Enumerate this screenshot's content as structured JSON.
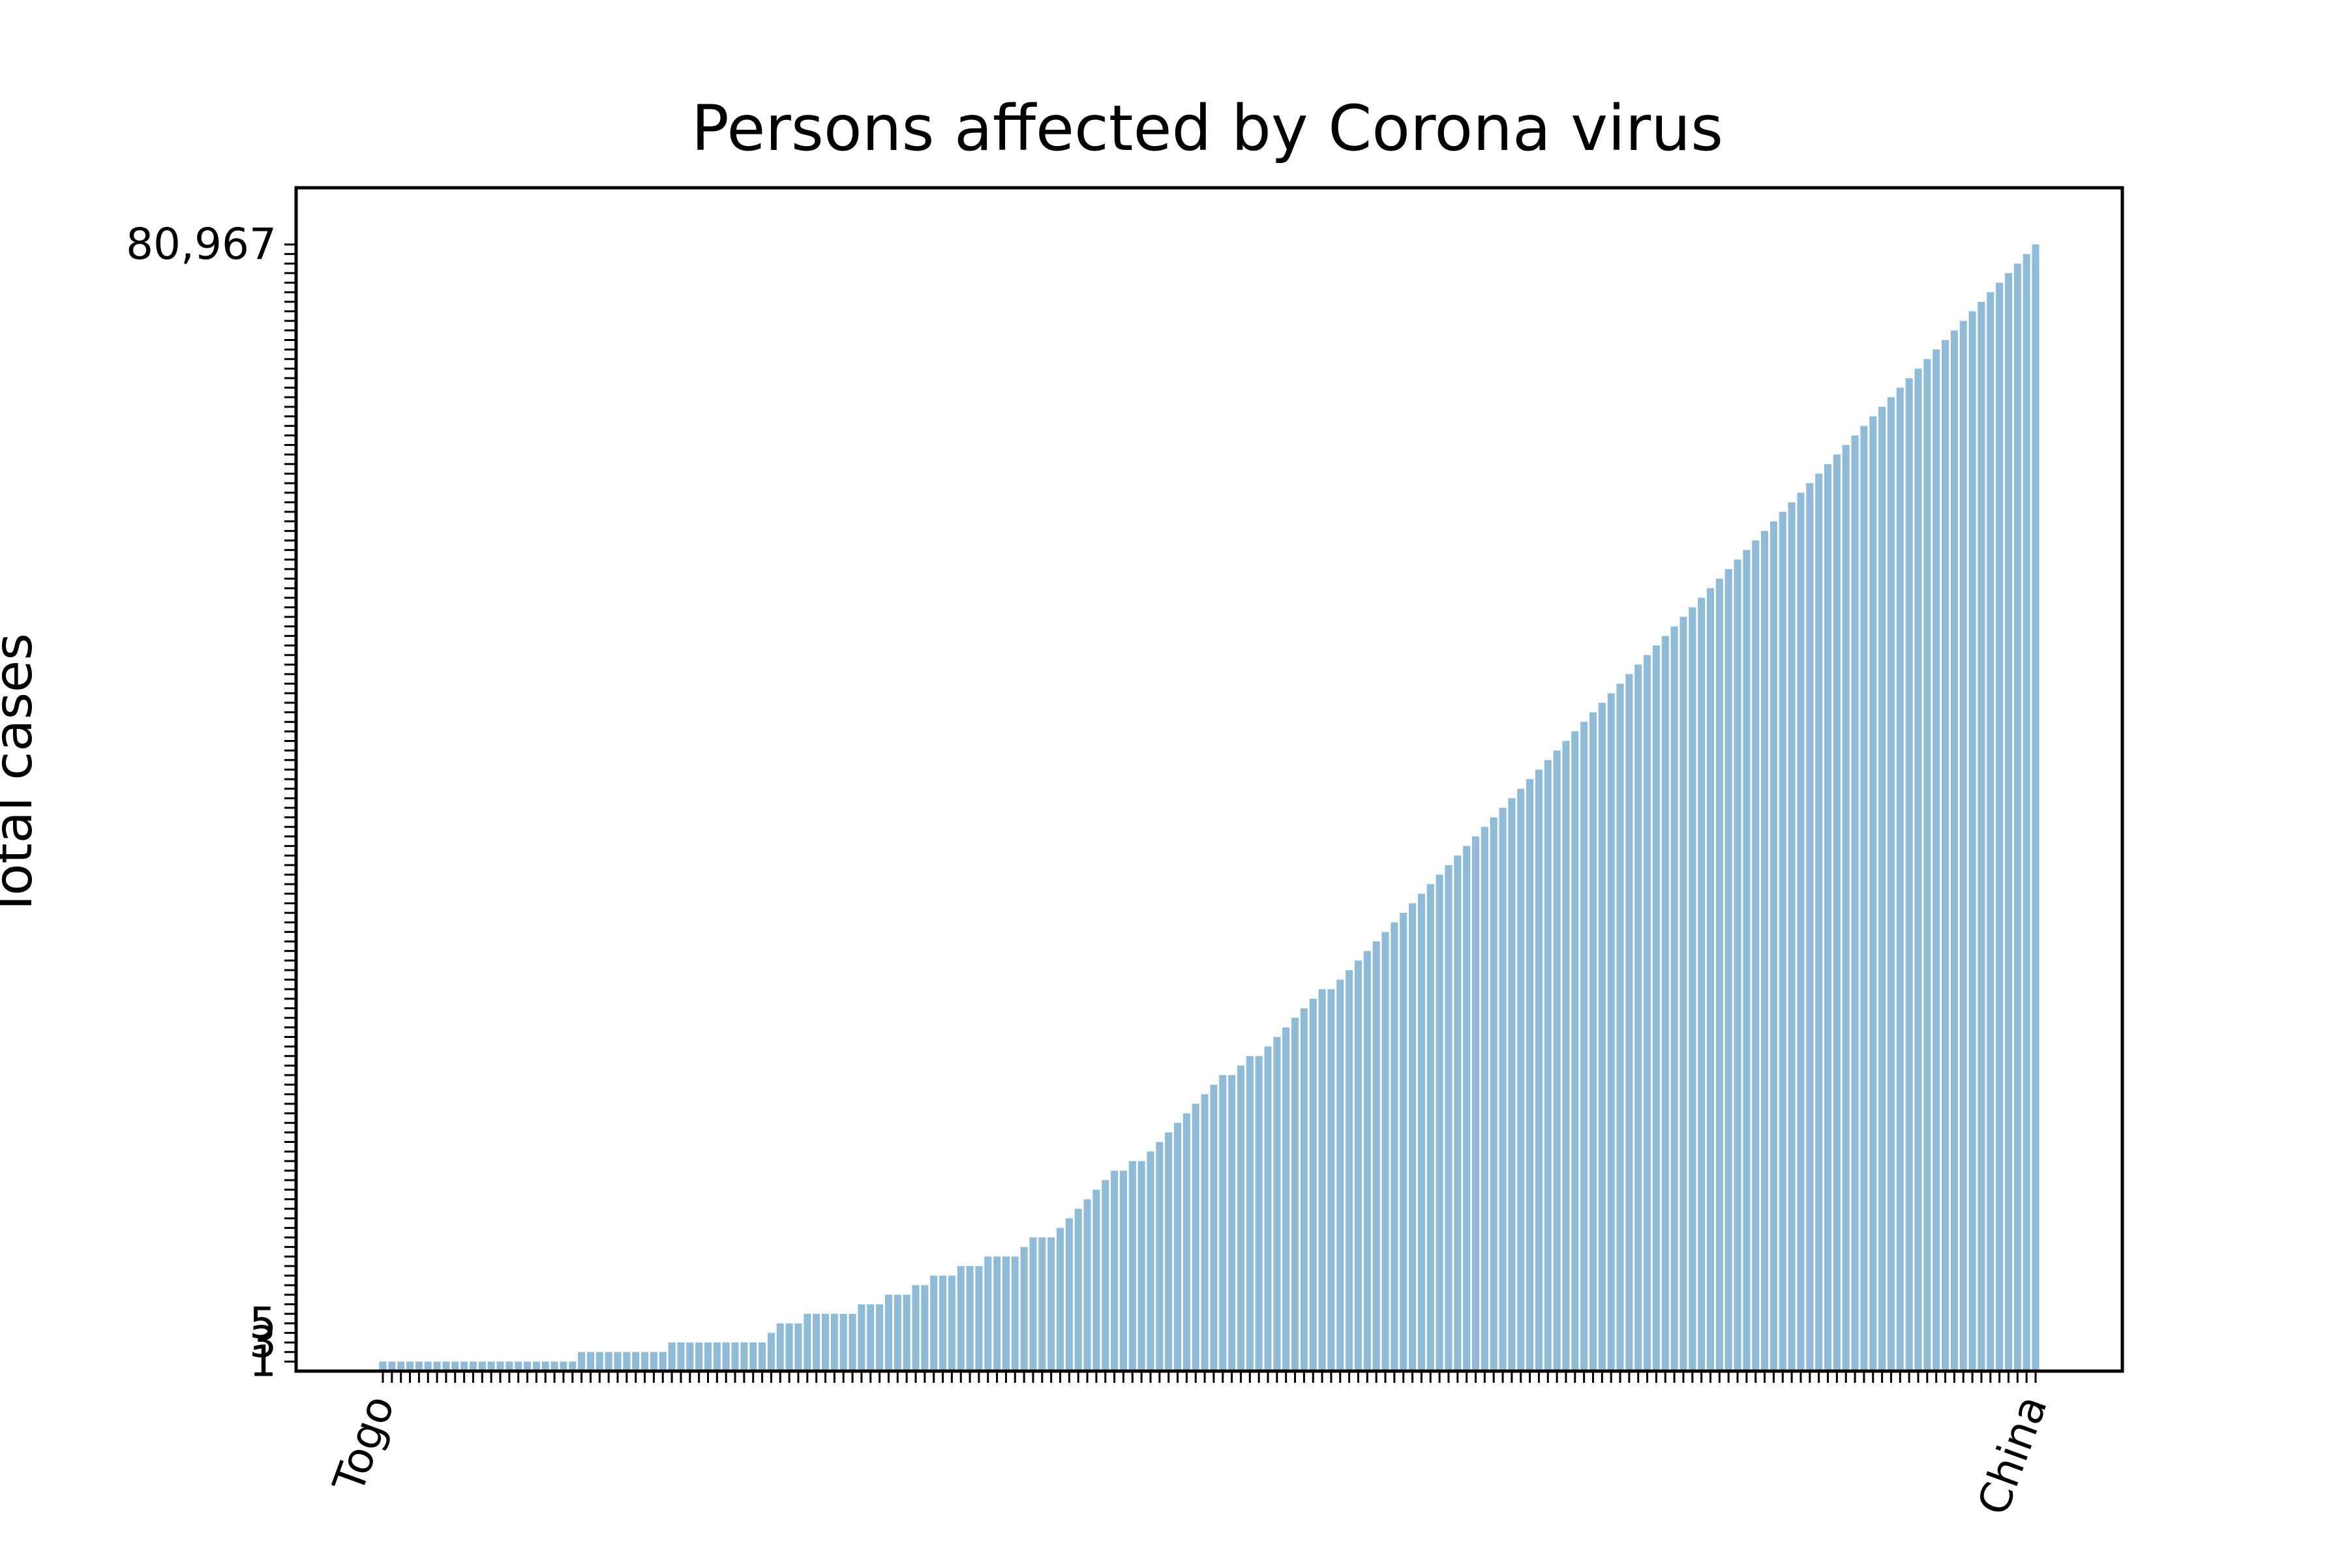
{
  "chart_data": {
    "type": "bar",
    "title": "Persons affected by Corona virus",
    "xlabel": "",
    "ylabel": "Total cases",
    "axis_kind": "categorical",
    "grid": false,
    "legend": "none",
    "bar_color": "#8fbbd9",
    "visible_legible_x_tick_labels": [
      "Togo",
      "China"
    ],
    "visible_legible_y_tick_labels": [
      "1",
      "3",
      "5",
      "80,967"
    ],
    "num_bars": 178,
    "bar_ranks": [
      1,
      1,
      1,
      1,
      1,
      1,
      1,
      1,
      1,
      1,
      1,
      1,
      1,
      1,
      1,
      1,
      1,
      1,
      1,
      1,
      1,
      1,
      2,
      2,
      2,
      2,
      2,
      2,
      2,
      2,
      2,
      2,
      3,
      3,
      3,
      3,
      3,
      3,
      3,
      3,
      3,
      3,
      3,
      4,
      5,
      5,
      5,
      6,
      6,
      6,
      6,
      6,
      6,
      7,
      7,
      7,
      8,
      8,
      8,
      9,
      9,
      10,
      10,
      10,
      11,
      11,
      11,
      12,
      12,
      12,
      12,
      13,
      14,
      14,
      14,
      15,
      16,
      17,
      18,
      19,
      20,
      21,
      21,
      22,
      22,
      23,
      24,
      25,
      26,
      27,
      28,
      29,
      30,
      31,
      31,
      32,
      33,
      33,
      34,
      35,
      36,
      37,
      38,
      39,
      40,
      40,
      41,
      42,
      43,
      44,
      45,
      46,
      47,
      48,
      49,
      50,
      51,
      52,
      53,
      54,
      55,
      56,
      57,
      58,
      59,
      60,
      61,
      62,
      63,
      64,
      65,
      66,
      67,
      68,
      69,
      70,
      71,
      72,
      73,
      74,
      75,
      76,
      77,
      78,
      79,
      80,
      81,
      82,
      83,
      84,
      85,
      86,
      87,
      88,
      89,
      90,
      91,
      92,
      93,
      94,
      95,
      96,
      97,
      98,
      99,
      100,
      101,
      102,
      103,
      104,
      105,
      106,
      107,
      108,
      109,
      110,
      111,
      112,
      113,
      114,
      115,
      116,
      117,
      118
    ]
  }
}
